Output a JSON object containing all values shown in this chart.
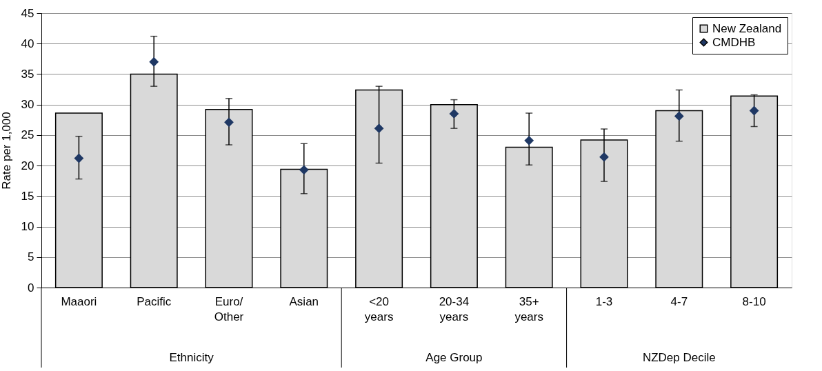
{
  "chart_data": {
    "type": "bar",
    "categories": [
      "Maaori",
      "Pacific",
      "Euro/\nOther",
      "Asian",
      "<20\nyears",
      "20-34\nyears",
      "35+\nyears",
      "1-3",
      "4-7",
      "8-10"
    ],
    "series": [
      {
        "name": "New Zealand",
        "color": "#d9d9d9",
        "values": [
          28.6,
          35.0,
          29.2,
          19.4,
          32.4,
          30.0,
          23.0,
          24.2,
          29.0,
          31.4
        ]
      },
      {
        "name": "CMDHB",
        "type": "scatter",
        "marker": "diamond",
        "color": "#1f3864",
        "values": [
          21.2,
          37.0,
          27.1,
          19.3,
          26.1,
          28.5,
          24.1,
          21.4,
          28.1,
          29.0
        ],
        "errors": [
          [
            17.8,
            24.8
          ],
          [
            33.0,
            41.2
          ],
          [
            23.4,
            31.0
          ],
          [
            15.4,
            23.6
          ],
          [
            20.4,
            33.0
          ],
          [
            26.1,
            30.8
          ],
          [
            20.1,
            28.6
          ],
          [
            17.4,
            26.0
          ],
          [
            24.0,
            32.4
          ],
          [
            26.4,
            31.6
          ]
        ]
      }
    ],
    "ylabel": "Rate per 1,000",
    "ylim": [
      0,
      45
    ],
    "yticks": [
      0,
      5,
      10,
      15,
      20,
      25,
      30,
      35,
      40,
      45
    ],
    "grid": "y",
    "legend": "top right",
    "annotations": [
      "Ethnicity",
      "Age Group",
      "NZDep Decile"
    ]
  }
}
